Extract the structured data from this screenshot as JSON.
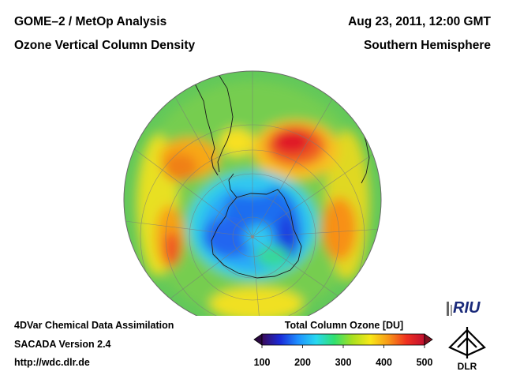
{
  "header": {
    "title_left_1": "GOME–2 / MetOp Analysis",
    "title_left_2": "Ozone Vertical Column Density",
    "title_right_1": "Aug 23, 2011, 12:00 GMT",
    "title_right_2": "Southern Hemisphere"
  },
  "footer": {
    "line1": "4DVar Chemical Data Assimilation",
    "line2": "SACADA Version 2.4",
    "line3": "http://wdc.dlr.de"
  },
  "colorbar": {
    "title": "Total Column Ozone [DU]",
    "ticks": [
      "100",
      "200",
      "300",
      "400",
      "500"
    ],
    "colors": [
      "#3a0a5a",
      "#1a2ad8",
      "#1e90ff",
      "#28d8f0",
      "#30e070",
      "#a8e020",
      "#f8e818",
      "#f89818",
      "#f03020",
      "#c01030"
    ]
  },
  "logos": {
    "riu": "RIU",
    "dlr": "DLR"
  },
  "map": {
    "projection": "Orthographic, South Pole centered",
    "background_color": "#66cc5a"
  }
}
